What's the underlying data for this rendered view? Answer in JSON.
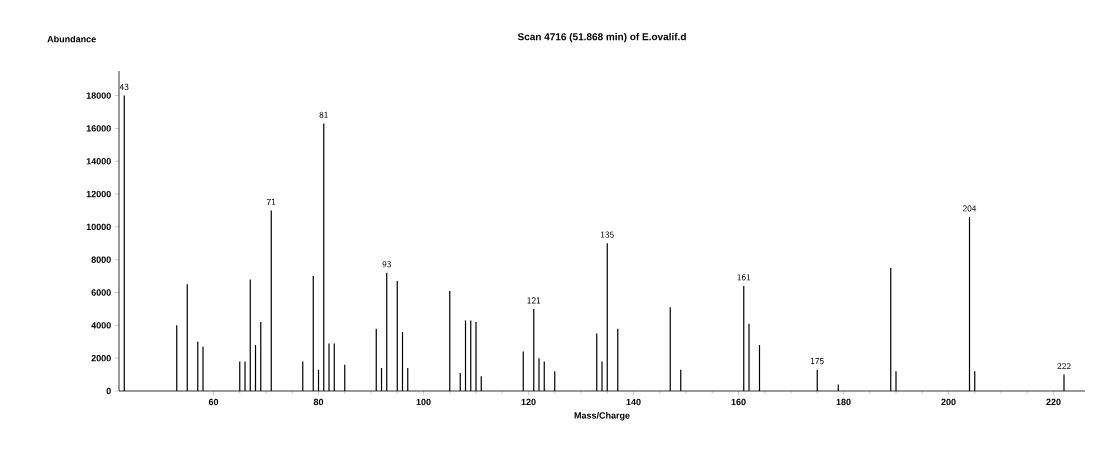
{
  "chart_data": {
    "type": "bar",
    "title": "Scan 4716 (51.868 min) of E.ovalif.d",
    "xlabel": "Mass/Charge",
    "ylabel": "Abundance",
    "x": [
      43,
      53,
      55,
      57,
      58,
      65,
      66,
      67,
      68,
      69,
      71,
      77,
      79,
      80,
      81,
      82,
      83,
      85,
      91,
      92,
      93,
      95,
      96,
      97,
      105,
      107,
      108,
      109,
      110,
      111,
      119,
      121,
      122,
      123,
      125,
      133,
      134,
      135,
      137,
      147,
      149,
      161,
      162,
      164,
      175,
      179,
      189,
      190,
      204,
      205,
      222
    ],
    "values": [
      18000,
      4000,
      6500,
      3000,
      2700,
      1800,
      1800,
      6800,
      2800,
      4200,
      11000,
      1800,
      7000,
      1300,
      16300,
      2900,
      2900,
      1600,
      3800,
      1400,
      7200,
      6700,
      3600,
      1400,
      6100,
      1100,
      4300,
      4300,
      4200,
      900,
      2400,
      5000,
      2000,
      1800,
      1200,
      3500,
      1800,
      9000,
      3800,
      5100,
      1300,
      6400,
      4100,
      2800,
      1300,
      400,
      7500,
      1200,
      10600,
      1200,
      1000
    ],
    "color": "#000000",
    "xlim": [
      42,
      226
    ],
    "ylim": [
      0,
      19500
    ],
    "xticks": [
      60,
      80,
      100,
      120,
      140,
      160,
      180,
      200,
      220
    ],
    "yticks": [
      0,
      2000,
      4000,
      6000,
      8000,
      10000,
      12000,
      14000,
      16000,
      18000
    ],
    "annotations": [
      {
        "text": "43",
        "x": 43,
        "y": 18000
      },
      {
        "text": "71",
        "x": 71,
        "y": 11000
      },
      {
        "text": "81",
        "x": 81,
        "y": 16300
      },
      {
        "text": "93",
        "x": 93,
        "y": 7200
      },
      {
        "text": "121",
        "x": 121,
        "y": 5000
      },
      {
        "text": "135",
        "x": 135,
        "y": 9000
      },
      {
        "text": "161",
        "x": 161,
        "y": 6400
      },
      {
        "text": "175",
        "x": 175,
        "y": 1300
      },
      {
        "text": "204",
        "x": 204,
        "y": 10600
      },
      {
        "text": "222",
        "x": 222,
        "y": 1000
      }
    ]
  }
}
